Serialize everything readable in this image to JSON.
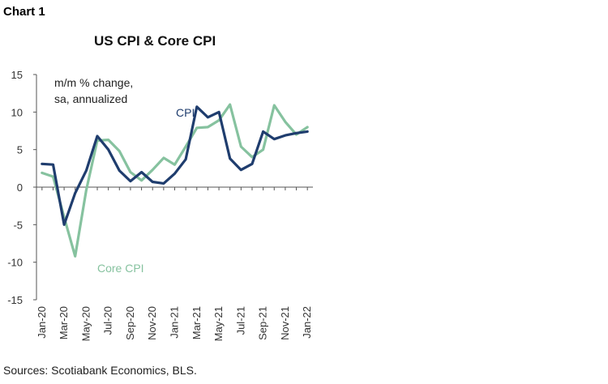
{
  "header": {
    "chart_label": "Chart 1"
  },
  "footer": {
    "source": "Sources: Scotiabank Economics, BLS."
  },
  "colors": {
    "cpi": "#1f3d6e",
    "core_cpi": "#86c29f",
    "axis": "#555555"
  },
  "chart_data": {
    "type": "line",
    "title": "US CPI & Core CPI",
    "annotation_lines": [
      "m/m % change,",
      "sa, annualized"
    ],
    "ylim": [
      -15,
      15
    ],
    "y_ticks": [
      15,
      10,
      5,
      0,
      -5,
      -10,
      -15
    ],
    "x": [
      "Jan-20",
      "Feb-20",
      "Mar-20",
      "Apr-20",
      "May-20",
      "Jun-20",
      "Jul-20",
      "Aug-20",
      "Sep-20",
      "Oct-20",
      "Nov-20",
      "Dec-20",
      "Jan-21",
      "Feb-21",
      "Mar-21",
      "Apr-21",
      "May-21",
      "Jun-21",
      "Jul-21",
      "Aug-21",
      "Sep-21",
      "Oct-21",
      "Nov-21",
      "Dec-21",
      "Jan-22"
    ],
    "x_tick_labels": [
      "Jan-20",
      "Mar-20",
      "May-20",
      "Jul-20",
      "Sep-20",
      "Nov-20",
      "Jan-21",
      "Mar-21",
      "May-21",
      "Jul-21",
      "Sep-21",
      "Nov-21",
      "Jan-22"
    ],
    "series": [
      {
        "name": "CPI",
        "values": [
          3.1,
          3.0,
          -5.0,
          -0.8,
          2.2,
          6.8,
          5.0,
          2.2,
          0.8,
          2.0,
          0.7,
          0.5,
          1.8,
          3.7,
          10.7,
          9.3,
          10.0,
          3.8,
          2.3,
          3.1,
          7.4,
          6.4,
          6.9,
          7.2,
          7.4
        ]
      },
      {
        "name": "Core CPI",
        "values": [
          1.9,
          1.4,
          -4.0,
          -9.2,
          -0.4,
          6.2,
          6.3,
          4.8,
          2.0,
          0.9,
          2.3,
          3.9,
          3.0,
          5.4,
          7.9,
          8.0,
          8.9,
          11.0,
          5.4,
          4.0,
          5.0,
          10.9,
          8.7,
          7.0,
          8.0
        ]
      }
    ]
  }
}
